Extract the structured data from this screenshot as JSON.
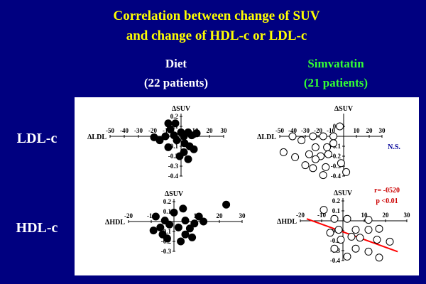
{
  "slide": {
    "title_lines": [
      "Correlation between change of SUV",
      "and change of HDL-c or LDL-c"
    ],
    "columns": [
      {
        "name": "Diet",
        "count": "(22 patients)"
      },
      {
        "name": "Simvatatin",
        "count": "(21 patients)"
      }
    ],
    "rows": [
      "LDL-c",
      "HDL-c"
    ]
  },
  "chart_data": [
    {
      "type": "scatter",
      "x_label": "ΔLDL",
      "y_label": "ΔSUV",
      "color": "#000000",
      "marker_fill": "#000000",
      "xlim": [
        -50,
        30
      ],
      "ylim": [
        -0.4,
        0.2
      ],
      "xticks": [
        -50,
        -40,
        -30,
        -20,
        -10,
        10,
        20,
        30
      ],
      "yticks": [
        0.2,
        0.1,
        -0.1,
        -0.2,
        -0.3,
        -0.4
      ],
      "x": [
        -9,
        -7.5,
        -5,
        -19,
        -15,
        -11,
        -3,
        0,
        2,
        5,
        7.5,
        11,
        2.5,
        6,
        9,
        2,
        -1,
        5,
        -9,
        -4
      ],
      "values": [
        0.13,
        0.07,
        0.01,
        -0.01,
        -0.04,
        0,
        -0.04,
        0.04,
        0,
        0.04,
        0.01,
        0.03,
        -0.07,
        -0.1,
        -0.13,
        -0.16,
        -0.2,
        -0.23,
        -0.11,
        0.13
      ]
    },
    {
      "type": "scatter",
      "x_label": "ΔLDL",
      "y_label": "ΔSUV",
      "color": "#000000",
      "marker_fill": "#ffffff",
      "xlim": [
        -50,
        30
      ],
      "ylim": [
        -0.4,
        0.2
      ],
      "xticks": [
        -50,
        -40,
        -30,
        -20,
        -10,
        10,
        20,
        30
      ],
      "yticks": [
        0.1,
        -0.1,
        -0.2,
        -0.3,
        -0.4
      ],
      "x": [
        -3,
        -8,
        -40,
        -33,
        -24,
        -16,
        -22,
        -13,
        -47,
        -38,
        -27,
        -18,
        -12,
        -24,
        -16,
        -2,
        2,
        -30,
        -8,
        -22,
        -14
      ],
      "values": [
        0.1,
        0,
        0,
        -0.04,
        0,
        0,
        -0.11,
        -0.11,
        -0.16,
        -0.21,
        -0.18,
        -0.2,
        -0.18,
        -0.32,
        -0.39,
        -0.27,
        -0.36,
        -0.29,
        -0.07,
        -0.23,
        -0.31
      ],
      "annotations": [
        {
          "text": "N.S.",
          "color": "#000099"
        }
      ]
    },
    {
      "type": "scatter",
      "x_label": "ΔHDL",
      "y_label": "ΔSUV",
      "color": "#000000",
      "marker_fill": "#000000",
      "xlim": [
        -20,
        30
      ],
      "ylim": [
        -0.3,
        0.2
      ],
      "xticks": [
        -20,
        -10,
        10,
        20,
        30
      ],
      "yticks": [
        0.2,
        0.1,
        -0.1,
        -0.2,
        -0.3
      ],
      "x": [
        23,
        4,
        11,
        13,
        9,
        5,
        2,
        7,
        -2,
        -4,
        -6,
        -5,
        -9,
        -8,
        5,
        8,
        -3,
        0,
        3
      ],
      "values": [
        0.17,
        0.13,
        0.05,
        0,
        -0.02,
        0.01,
        -0.06,
        -0.07,
        -0.03,
        0.01,
        -0.06,
        -0.13,
        -0.09,
        0.05,
        -0.13,
        -0.16,
        -0.17,
        0.09,
        -0.2
      ]
    },
    {
      "type": "scatter",
      "x_label": "ΔHDL",
      "y_label": "ΔSUV",
      "color": "#000000",
      "marker_fill": "#ffffff",
      "xlim": [
        -20,
        30
      ],
      "ylim": [
        -0.4,
        0.2
      ],
      "xticks": [
        -20,
        -10,
        10,
        20,
        30
      ],
      "yticks": [
        0.2,
        0.1,
        -0.1,
        -0.2,
        -0.3,
        -0.4
      ],
      "x": [
        -9,
        -4,
        2,
        12,
        -6,
        -2,
        6,
        12,
        17,
        4,
        8,
        16,
        22,
        -1,
        6,
        12,
        17,
        -4,
        2
      ],
      "values": [
        0.11,
        0.02,
        0.02,
        0.01,
        -0.12,
        -0.09,
        -0.09,
        -0.09,
        -0.08,
        -0.16,
        -0.17,
        -0.19,
        -0.21,
        -0.19,
        -0.28,
        -0.31,
        -0.37,
        -0.28,
        -0.36
      ],
      "fit_line": {
        "x": [
          -17,
          25.7
        ],
        "values": [
          0.02,
          -0.31
        ],
        "color": "#ff0000"
      },
      "annotations": [
        {
          "text": "r= -0520",
          "color": "#cc0000"
        },
        {
          "text": "p <0.01",
          "color": "#cc0000"
        }
      ]
    }
  ]
}
